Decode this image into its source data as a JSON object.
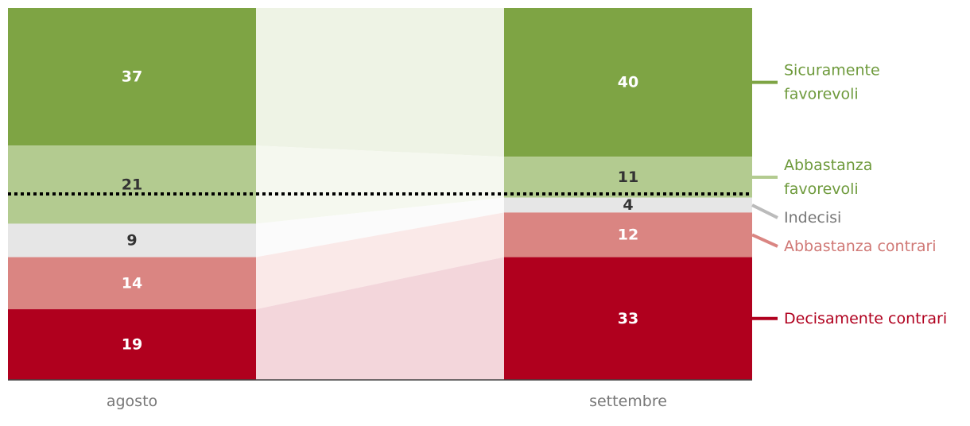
{
  "chart_data": {
    "type": "stacked-bar",
    "categories": [
      "agosto",
      "settembre"
    ],
    "series": [
      {
        "name": "Sicuramente favorevoli",
        "values": [
          37,
          40
        ],
        "color": "#7ea444",
        "flow_color": "#eef3e5",
        "text_color": "#ffffff",
        "legend_color": "#6e9a3c",
        "legend_lines": [
          "Sicuramente",
          "favorevoli"
        ]
      },
      {
        "name": "Abbastanza favorevoli",
        "values": [
          21,
          11
        ],
        "color": "#b3cb90",
        "flow_color": "#f5f8ef",
        "text_color": "#333333",
        "legend_color": "#6e9a3c",
        "legend_lines": [
          "Abbastanza",
          "favorevoli"
        ]
      },
      {
        "name": "Indecisi",
        "values": [
          9,
          4
        ],
        "color": "#e6e6e6",
        "flow_color": "#fbfbfb",
        "text_color": "#333333",
        "legend_color": "#777777",
        "legend_lines": [
          "Indecisi"
        ]
      },
      {
        "name": "Abbastanza contrari",
        "values": [
          14,
          12
        ],
        "color": "#da8582",
        "flow_color": "#fae9e8",
        "text_color": "#ffffff",
        "legend_color": "#d07875",
        "legend_lines": [
          "Abbastanza contrari"
        ]
      },
      {
        "name": "Decisamente contrari",
        "values": [
          19,
          33
        ],
        "color": "#b0001e",
        "flow_color": "#f3d6db",
        "text_color": "#ffffff",
        "legend_color": "#b0001e",
        "legend_lines": [
          "Decisamente contrari"
        ]
      }
    ],
    "stack_order": "top-to-bottom",
    "reference_line": {
      "value": 50,
      "style": "dotted"
    },
    "legend_placement": "right",
    "grid": false
  }
}
